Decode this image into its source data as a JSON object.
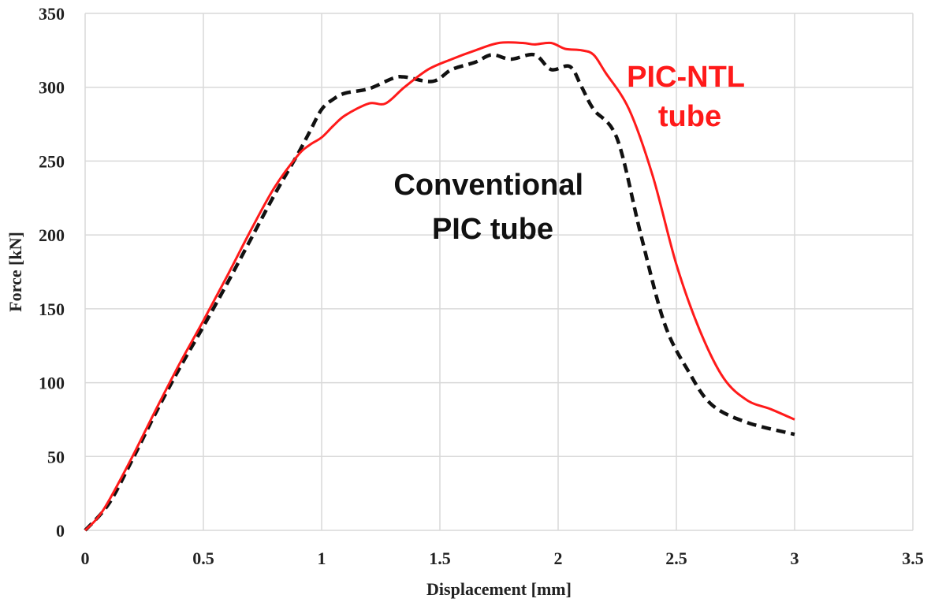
{
  "chart_data": {
    "type": "line",
    "title": "",
    "xlabel": "Displacement [mm]",
    "ylabel": "Force [kN]",
    "xlim": [
      0,
      3.5
    ],
    "ylim": [
      0,
      350
    ],
    "xticks": [
      "0",
      "0.5",
      "1",
      "1.5",
      "2",
      "2.5",
      "3",
      "3.5"
    ],
    "xtick_values": [
      0,
      0.5,
      1,
      1.5,
      2,
      2.5,
      3,
      3.5
    ],
    "yticks": [
      "0",
      "50",
      "100",
      "150",
      "200",
      "250",
      "300",
      "350"
    ],
    "ytick_values": [
      0,
      50,
      100,
      150,
      200,
      250,
      300,
      350
    ],
    "grid": true,
    "series": [
      {
        "name": "PIC-NTL tube",
        "color": "#ff1a1a",
        "style": "solid",
        "x": [
          0,
          0.05,
          0.1,
          0.2,
          0.3,
          0.4,
          0.5,
          0.6,
          0.7,
          0.8,
          0.9,
          0.95,
          1.0,
          1.05,
          1.1,
          1.2,
          1.27,
          1.35,
          1.45,
          1.55,
          1.65,
          1.75,
          1.85,
          1.9,
          1.97,
          2.03,
          2.1,
          2.15,
          2.2,
          2.3,
          2.4,
          2.5,
          2.6,
          2.7,
          2.8,
          2.9,
          3.0
        ],
        "y": [
          0,
          8,
          20,
          50,
          82,
          113,
          142,
          172,
          203,
          232,
          254,
          261,
          266,
          274,
          281,
          289,
          289,
          300,
          312,
          319,
          325,
          330,
          330,
          329,
          330,
          326,
          325,
          322,
          310,
          285,
          240,
          180,
          135,
          103,
          88,
          82,
          75
        ]
      },
      {
        "name": "Conventional PIC tube",
        "color": "#111111",
        "style": "dashed",
        "x": [
          0,
          0.1,
          0.2,
          0.3,
          0.4,
          0.5,
          0.6,
          0.7,
          0.8,
          0.9,
          0.95,
          1.0,
          1.05,
          1.1,
          1.2,
          1.3,
          1.35,
          1.47,
          1.55,
          1.65,
          1.72,
          1.8,
          1.9,
          1.97,
          2.05,
          2.1,
          2.15,
          2.25,
          2.35,
          2.45,
          2.55,
          2.65,
          2.8,
          3.0
        ],
        "y": [
          0,
          18,
          48,
          80,
          110,
          138,
          167,
          197,
          227,
          255,
          270,
          285,
          292,
          296,
          299,
          306,
          307,
          304,
          312,
          317,
          322,
          319,
          322,
          312,
          314,
          300,
          285,
          265,
          200,
          140,
          108,
          85,
          73,
          65
        ]
      }
    ],
    "annotations": [
      {
        "lines": [
          "PIC-NTL",
          "tube"
        ],
        "color": "#ff1a1a"
      },
      {
        "lines": [
          "Conventional",
          "PIC tube"
        ],
        "color": "#111111"
      }
    ]
  }
}
